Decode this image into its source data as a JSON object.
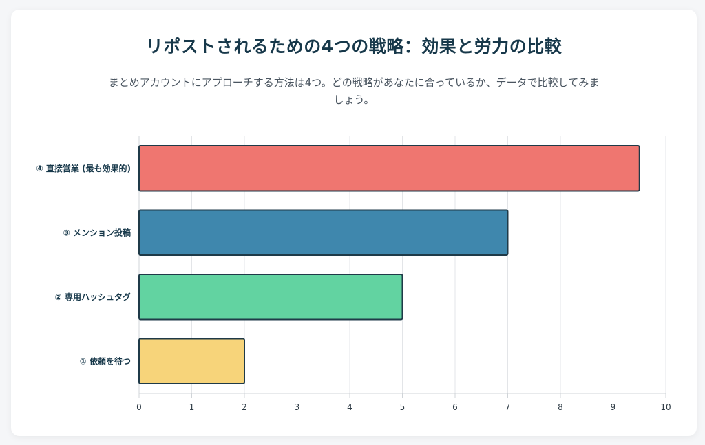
{
  "header": {
    "title": "リポストされるための4つの戦略：効果と労力の比較",
    "subtitle": "まとめアカウントにアプローチする方法は4つ。どの戦略があなたに合っているか、データで比較してみましょう。"
  },
  "chart_data": {
    "type": "bar",
    "orientation": "horizontal",
    "categories": [
      "④ 直接営業 (最も効果的)",
      "③ メンション投稿",
      "② 専用ハッシュタグ",
      "① 依頼を待つ"
    ],
    "values": [
      9.5,
      7,
      5,
      2
    ],
    "colors": [
      "#ef7670",
      "#3f87ad",
      "#62d3a1",
      "#f7d47a"
    ],
    "bar_border_color": "#1f3a48",
    "xlim": [
      0,
      10
    ],
    "x_ticks": [
      "0",
      "1",
      "2",
      "3",
      "4",
      "5",
      "6",
      "7",
      "8",
      "9",
      "10"
    ],
    "grid": "vertical",
    "xlabel": "",
    "ylabel": "",
    "legend": "none"
  }
}
